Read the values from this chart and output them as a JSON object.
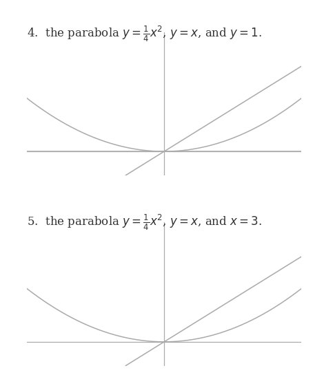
{
  "background_color": "#ffffff",
  "plots": [
    {
      "label_text": "4.  the parabola $y = \\frac{1}{4}x^2$, $y = x$, and $y = 1$.",
      "xlim": [
        -2.5,
        2.5
      ],
      "ylim": [
        -0.7,
        3.5
      ],
      "parabola_coeff": 0.25,
      "line_slope": 1,
      "line_intercept": 0,
      "extra_type": "horizontal",
      "extra_value": 0.0,
      "show_extra_as_axis": true
    },
    {
      "label_text": "5.  the parabola $y = \\frac{1}{4}x^2$, $y = x$, and $x = 3$.",
      "xlim": [
        -2.5,
        2.5
      ],
      "ylim": [
        -0.7,
        3.5
      ],
      "parabola_coeff": 0.25,
      "line_slope": 1,
      "line_intercept": 0,
      "extra_type": "none",
      "extra_value": 3.0
    }
  ],
  "curve_color": "#aaaaaa",
  "axis_color": "#aaaaaa",
  "text_color": "#333333",
  "label_fontsize": 12,
  "figsize": [
    4.86,
    5.48
  ],
  "dpi": 100
}
